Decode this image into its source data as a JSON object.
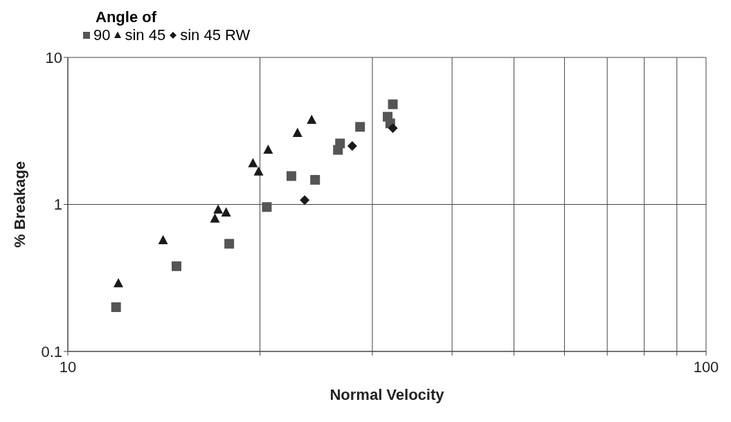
{
  "chart_data": {
    "type": "scatter",
    "xlabel": "Normal Velocity",
    "ylabel": "% Breakage",
    "legend_title": "Angle of",
    "legend": "top left",
    "log": "xy",
    "grid": true,
    "xlim": [
      10,
      100
    ],
    "xticks": [
      10,
      {
        "value": 20,
        "label": null
      },
      {
        "value": 30,
        "label": null
      },
      {
        "value": 40,
        "label": null
      },
      {
        "value": 50,
        "label": null
      },
      {
        "value": 60,
        "label": null
      },
      {
        "value": 70,
        "label": null
      },
      {
        "value": 80,
        "label": null
      },
      {
        "value": 90,
        "label": null
      },
      100
    ],
    "ylim": [
      0.1,
      10
    ],
    "yticks": [
      0.1,
      1,
      10
    ],
    "series": [
      {
        "name": "90",
        "color": "#555555",
        "marker": "square",
        "x": [
          11.9,
          14.8,
          17.9,
          20.5,
          22.4,
          24.4,
          26.5,
          26.7,
          28.7,
          31.7,
          32.0,
          32.3
        ],
        "values": [
          0.2,
          0.38,
          0.54,
          0.96,
          1.56,
          1.47,
          2.35,
          2.6,
          3.37,
          3.95,
          3.56,
          4.8
        ]
      },
      {
        "name": "sin 45",
        "color": "#1a1a1a",
        "marker": "triangle",
        "x": [
          12.0,
          14.1,
          17.0,
          17.2,
          17.7,
          19.5,
          19.9,
          20.6,
          22.9,
          24.1
        ],
        "values": [
          0.29,
          0.57,
          0.8,
          0.92,
          0.88,
          1.9,
          1.67,
          2.35,
          3.06,
          3.75
        ]
      },
      {
        "name": "sin 45 RW",
        "color": "#1a1a1a",
        "marker": "diamond",
        "x": [
          23.5,
          27.9,
          32.3
        ],
        "values": [
          1.07,
          2.5,
          3.3
        ]
      }
    ]
  }
}
